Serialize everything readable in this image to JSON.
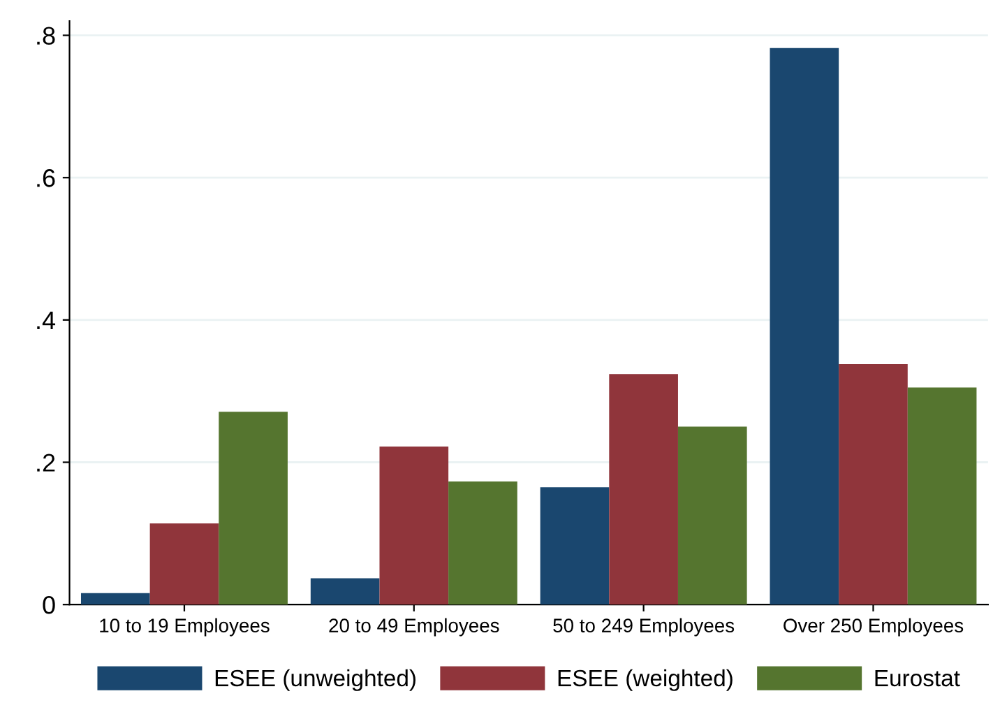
{
  "chart_data": {
    "type": "bar",
    "categories": [
      "10 to 19 Employees",
      "20 to 49 Employees",
      "50 to 249 Employees",
      "Over 250 Employees"
    ],
    "series": [
      {
        "name": "ESEE (unweighted)",
        "color": "#1a476f",
        "values": [
          0.016,
          0.037,
          0.165,
          0.782
        ]
      },
      {
        "name": "ESEE (weighted)",
        "color": "#90353b",
        "values": [
          0.114,
          0.222,
          0.324,
          0.338
        ]
      },
      {
        "name": "Eurostat",
        "color": "#55752f",
        "values": [
          0.271,
          0.173,
          0.25,
          0.305
        ]
      }
    ],
    "ylim": [
      0,
      0.82
    ],
    "yticks": [
      0,
      {
        "value": 0.2,
        "label": ".2"
      },
      {
        "value": 0.4,
        "label": ".4"
      },
      {
        "value": 0.6,
        "label": ".6"
      },
      {
        "value": 0.8,
        "label": ".8"
      }
    ],
    "grid": "y",
    "legend": "bottom"
  }
}
